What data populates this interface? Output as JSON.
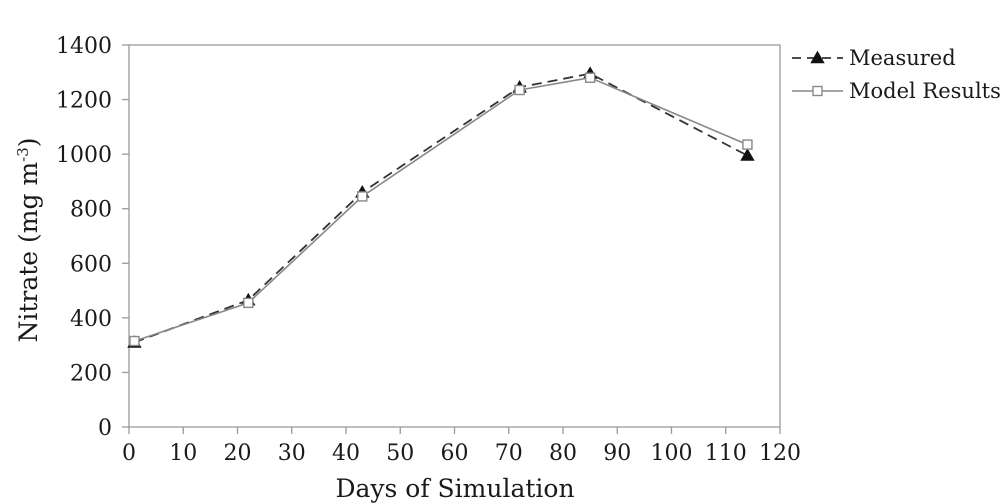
{
  "chart_data": {
    "type": "line",
    "xlabel": "Days of Simulation",
    "ylabel_main": "Nitrate (mg m",
    "ylabel_sup": "-3",
    "ylabel_end": ")",
    "xlim": [
      0,
      120
    ],
    "ylim": [
      0,
      1400
    ],
    "xticks": [
      "0",
      "10",
      "20",
      "30",
      "40",
      "50",
      "60",
      "70",
      "80",
      "90",
      "100",
      "110",
      "120"
    ],
    "yticks": [
      "0",
      "200",
      "400",
      "600",
      "800",
      "1000",
      "1200",
      "1400"
    ],
    "grid": false,
    "legend_position": "right",
    "series": [
      {
        "name": "Measured",
        "line_style": "dashed",
        "marker": "filled-triangle",
        "color": "#333333",
        "x": [
          1,
          22,
          43,
          72,
          85,
          114
        ],
        "y": [
          310,
          465,
          860,
          1245,
          1295,
          995
        ]
      },
      {
        "name": "Model Results",
        "line_style": "solid",
        "marker": "open-square",
        "color": "#888888",
        "x": [
          1,
          22,
          43,
          72,
          85,
          114
        ],
        "y": [
          315,
          455,
          845,
          1235,
          1280,
          1035
        ]
      }
    ]
  }
}
